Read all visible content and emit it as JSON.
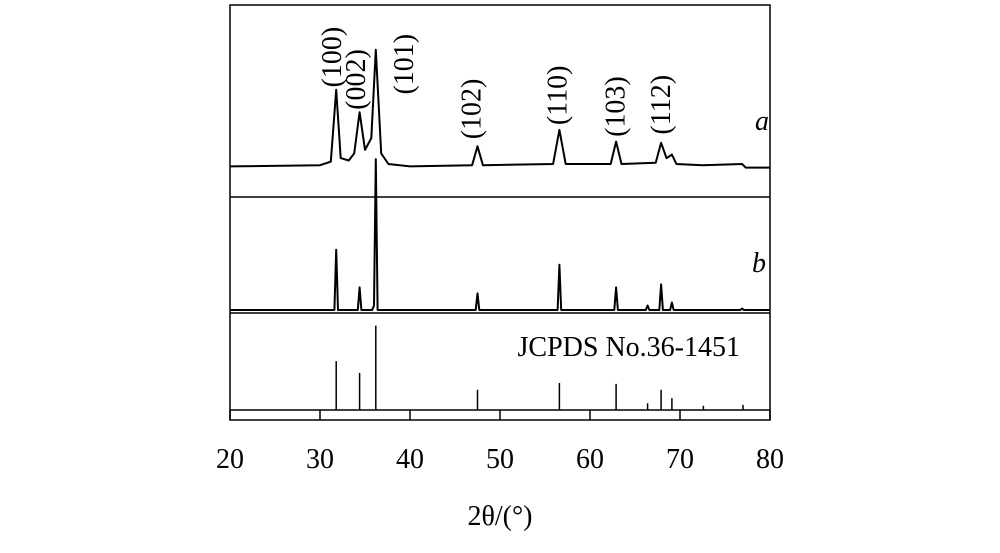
{
  "chart_data": [
    {
      "type": "line",
      "name": "a",
      "color": "#000000",
      "xlim": [
        20,
        80
      ],
      "ylim": [
        -25,
        138
      ],
      "x": [
        20,
        30,
        31.2,
        31.8,
        32.3,
        33.2,
        33.8,
        34.4,
        35.0,
        35.7,
        36.2,
        36.8,
        37.6,
        40,
        46.9,
        47.5,
        48.1,
        55.9,
        56.6,
        57.3,
        62.3,
        62.9,
        63.5,
        67.3,
        67.9,
        68.5,
        69.1,
        69.6,
        72.5,
        76.9,
        77.3,
        80
      ],
      "values": [
        1,
        2,
        5,
        66,
        8,
        6,
        12,
        47,
        15,
        25,
        100,
        12,
        3,
        1,
        2,
        18,
        2,
        3,
        32,
        3,
        3,
        22,
        3,
        4,
        21,
        8,
        11,
        3,
        2,
        3,
        0,
        0
      ],
      "annotations": [
        {
          "text": "(100)",
          "x": 31.2,
          "y": 68
        },
        {
          "text": "(002)",
          "x": 33.9,
          "y": 49
        },
        {
          "text": "(101)",
          "x": 39.2,
          "y": 62
        },
        {
          "text": "(102)",
          "x": 46.7,
          "y": 24
        },
        {
          "text": "(110)",
          "x": 56.3,
          "y": 36
        },
        {
          "text": "(103)",
          "x": 62.7,
          "y": 26
        },
        {
          "text": "(112)",
          "x": 67.8,
          "y": 28
        }
      ]
    },
    {
      "type": "line",
      "name": "b",
      "color": "#000000",
      "xlim": [
        20,
        80
      ],
      "ylim": [
        -2,
        75
      ],
      "x": [
        20,
        31.6,
        31.8,
        32.0,
        34.2,
        34.4,
        34.6,
        35.8,
        36.0,
        36.2,
        36.4,
        47.3,
        47.5,
        47.7,
        56.4,
        56.6,
        56.8,
        62.7,
        62.9,
        63.1,
        66.2,
        66.4,
        66.6,
        67.7,
        67.9,
        68.1,
        68.9,
        69.1,
        69.3,
        76.7,
        76.9,
        77.1,
        80
      ],
      "values": [
        0,
        0,
        40,
        0,
        0,
        15,
        0,
        0,
        3,
        100,
        0,
        0,
        11,
        0,
        0,
        30,
        0,
        0,
        15,
        0,
        0,
        3,
        0,
        0,
        17,
        0,
        0,
        5,
        0,
        0,
        1,
        0,
        0
      ]
    },
    {
      "type": "stick",
      "name": "JCPDS No.36-1451",
      "color": "#000000",
      "xlim": [
        20,
        80
      ],
      "ylim": [
        0,
        115
      ],
      "xticks": [
        20,
        30,
        40,
        50,
        60,
        70,
        80
      ],
      "xlabel": "2θ/(°)",
      "x": [
        31.8,
        34.4,
        36.2,
        47.5,
        56.6,
        62.9,
        66.4,
        67.9,
        69.1,
        72.6,
        77.0
      ],
      "values": [
        58,
        44,
        100,
        24,
        32,
        31,
        8,
        24,
        14,
        5,
        6
      ]
    }
  ]
}
